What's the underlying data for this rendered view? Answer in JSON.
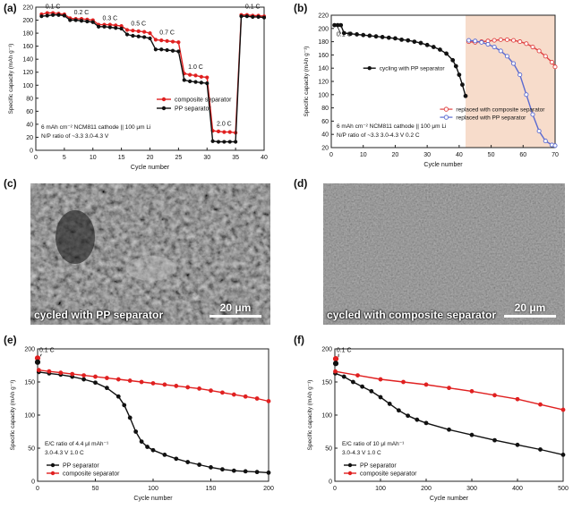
{
  "panel_labels": [
    "(a)",
    "(b)",
    "(c)",
    "(d)",
    "(e)",
    "(f)"
  ],
  "chart_data": [
    {
      "id": "a",
      "type": "line",
      "xlabel": "Cycle number",
      "ylabel": "Specific capacity (mAh g⁻¹)",
      "xlim": [
        0,
        40
      ],
      "ylim": [
        0,
        220
      ],
      "xticks": [
        0,
        5,
        10,
        15,
        20,
        25,
        30,
        35,
        40
      ],
      "yticks": [
        0,
        20,
        40,
        60,
        80,
        100,
        120,
        140,
        160,
        180,
        200,
        220
      ],
      "series": [
        {
          "name": "composite separator",
          "color": "#e02020",
          "x": [
            1,
            2,
            3,
            4,
            5,
            6,
            7,
            8,
            9,
            10,
            11,
            12,
            13,
            14,
            15,
            16,
            17,
            18,
            19,
            20,
            21,
            22,
            23,
            24,
            25,
            26,
            27,
            28,
            29,
            30,
            31,
            32,
            33,
            34,
            35,
            36,
            37,
            38,
            39,
            40
          ],
          "y": [
            209,
            211,
            211,
            210,
            209,
            203,
            202,
            202,
            201,
            200,
            193,
            193,
            193,
            192,
            191,
            185,
            184,
            183,
            182,
            180,
            170,
            169,
            168,
            167,
            166,
            118,
            116,
            115,
            113,
            112,
            30,
            29,
            28,
            28,
            27,
            208,
            208,
            207,
            207,
            206
          ]
        },
        {
          "name": "PP separator",
          "color": "#111111",
          "x": [
            1,
            2,
            3,
            4,
            5,
            6,
            7,
            8,
            9,
            10,
            11,
            12,
            13,
            14,
            15,
            16,
            17,
            18,
            19,
            20,
            21,
            22,
            23,
            24,
            25,
            26,
            27,
            28,
            29,
            30,
            31,
            32,
            33,
            34,
            35,
            36,
            37,
            38,
            39,
            40
          ],
          "y": [
            206,
            207,
            208,
            208,
            207,
            200,
            200,
            199,
            198,
            197,
            190,
            190,
            189,
            188,
            187,
            178,
            176,
            175,
            174,
            172,
            155,
            155,
            154,
            153,
            152,
            108,
            106,
            105,
            104,
            103,
            14,
            13,
            13,
            13,
            13,
            206,
            206,
            205,
            205,
            204
          ]
        }
      ],
      "annotations": [
        {
          "text": "0.1 C",
          "x": 3,
          "y": 218
        },
        {
          "text": "0.2 C",
          "x": 8,
          "y": 209
        },
        {
          "text": "0.3 C",
          "x": 13,
          "y": 200
        },
        {
          "text": "0.5 C",
          "x": 18,
          "y": 192
        },
        {
          "text": "0.7 C",
          "x": 23,
          "y": 178
        },
        {
          "text": "1.0 C",
          "x": 28,
          "y": 125
        },
        {
          "text": "2.0 C",
          "x": 33,
          "y": 38
        },
        {
          "text": "0.1 C",
          "x": 38,
          "y": 218
        }
      ],
      "notes": [
        "6 mAh cm⁻² NCM811 cathode || 100 μm Li",
        "N/P ratio of ~3.3    3.0-4.3 V"
      ],
      "legend_position": "center-right"
    },
    {
      "id": "b",
      "type": "line",
      "xlabel": "Cycle number",
      "ylabel": "Specific capacity (mAh g⁻¹)",
      "xlim": [
        0,
        70
      ],
      "ylim": [
        20,
        220
      ],
      "xticks": [
        0,
        10,
        20,
        30,
        40,
        50,
        60,
        70
      ],
      "yticks": [
        20,
        40,
        60,
        80,
        100,
        120,
        140,
        160,
        180,
        200,
        220
      ],
      "shaded_region": {
        "x": [
          42,
          70
        ],
        "color": "#f7dccb"
      },
      "series": [
        {
          "name": "cycling with PP separator",
          "color": "#111111",
          "marker": "filled",
          "x": [
            1,
            2,
            3,
            4,
            6,
            8,
            10,
            12,
            14,
            16,
            18,
            20,
            22,
            24,
            26,
            28,
            30,
            32,
            34,
            36,
            38,
            39,
            40,
            41,
            42
          ],
          "y": [
            205,
            205,
            205,
            193,
            192,
            191,
            190,
            189,
            188,
            187,
            186,
            185,
            183,
            182,
            180,
            178,
            175,
            172,
            168,
            162,
            152,
            143,
            130,
            115,
            98
          ]
        },
        {
          "name": "replaced with composite separator",
          "color": "#e04040",
          "marker": "open",
          "x": [
            43,
            45,
            47,
            49,
            51,
            53,
            55,
            57,
            59,
            61,
            63,
            65,
            67,
            69,
            70
          ],
          "y": [
            180,
            179,
            180,
            181,
            182,
            183,
            183,
            182,
            180,
            177,
            172,
            166,
            158,
            149,
            142
          ]
        },
        {
          "name": "replaced with PP separator",
          "color": "#5a6ad0",
          "marker": "open",
          "x": [
            43,
            45,
            47,
            49,
            51,
            53,
            55,
            57,
            59,
            61,
            63,
            65,
            67,
            69,
            70
          ],
          "y": [
            182,
            181,
            179,
            176,
            172,
            166,
            158,
            147,
            130,
            100,
            70,
            45,
            30,
            24,
            23
          ]
        }
      ],
      "annotations": [
        {
          "text": "0.1 C",
          "x": 4,
          "y": 188
        }
      ],
      "notes": [
        "6 mAh cm⁻² NCM811 cathode || 100 μm Li",
        "N/P ratio of ~3.3    3.0-4.3 V   0.2 C"
      ],
      "legend_position": "center-left and lower-right"
    },
    {
      "id": "e",
      "type": "line",
      "xlabel": "Cycle number",
      "ylabel": "Specific capacity (mAh g⁻¹)",
      "xlim": [
        0,
        200
      ],
      "ylim": [
        0,
        200
      ],
      "xticks": [
        0,
        50,
        100,
        150,
        200
      ],
      "yticks": [
        0,
        50,
        100,
        150,
        200
      ],
      "series": [
        {
          "name": "PP separator",
          "color": "#111111",
          "x": [
            1,
            10,
            20,
            30,
            40,
            50,
            60,
            70,
            75,
            80,
            85,
            90,
            95,
            100,
            110,
            120,
            130,
            140,
            150,
            160,
            170,
            180,
            190,
            200
          ],
          "y": [
            165,
            163,
            161,
            158,
            154,
            149,
            141,
            128,
            115,
            96,
            75,
            60,
            52,
            47,
            40,
            34,
            29,
            25,
            21,
            18,
            16,
            15,
            14,
            13
          ]
        },
        {
          "name": "composite separator",
          "color": "#e02020",
          "x": [
            1,
            10,
            20,
            30,
            40,
            50,
            60,
            70,
            80,
            90,
            100,
            110,
            120,
            130,
            140,
            150,
            160,
            170,
            180,
            190,
            200
          ],
          "y": [
            168,
            166,
            164,
            162,
            160,
            158,
            156,
            154,
            152,
            150,
            148,
            146,
            144,
            142,
            140,
            137,
            134,
            131,
            128,
            125,
            121
          ]
        }
      ],
      "start_points": [
        {
          "x": 0,
          "y": 186,
          "color": "#e02020"
        },
        {
          "x": 0,
          "y": 180,
          "color": "#111111"
        }
      ],
      "annotations": [
        {
          "text": "0.1 C",
          "x": 8,
          "y": 195
        }
      ],
      "notes": [
        "E/C ratio of 4.4 μl mAh⁻¹",
        "3.0-4.3 V   1.0 C"
      ],
      "legend_position": "bottom-left"
    },
    {
      "id": "f",
      "type": "line",
      "xlabel": "Cycle number",
      "ylabel": "Specific capacity (mAh g⁻¹)",
      "xlim": [
        0,
        500
      ],
      "ylim": [
        0,
        200
      ],
      "xticks": [
        0,
        100,
        200,
        300,
        400,
        500
      ],
      "yticks": [
        0,
        50,
        100,
        150,
        200
      ],
      "series": [
        {
          "name": "PP separator",
          "color": "#111111",
          "x": [
            1,
            20,
            40,
            60,
            80,
            100,
            120,
            140,
            160,
            180,
            200,
            250,
            300,
            350,
            400,
            450,
            500
          ],
          "y": [
            163,
            158,
            150,
            143,
            136,
            127,
            117,
            107,
            99,
            93,
            88,
            78,
            70,
            62,
            55,
            48,
            40
          ]
        },
        {
          "name": "composite separator",
          "color": "#e02020",
          "x": [
            1,
            50,
            100,
            150,
            200,
            250,
            300,
            350,
            400,
            450,
            500
          ],
          "y": [
            166,
            160,
            154,
            150,
            146,
            141,
            136,
            130,
            124,
            116,
            108
          ]
        }
      ],
      "start_points": [
        {
          "x": 2,
          "y": 185,
          "color": "#e02020"
        },
        {
          "x": 2,
          "y": 178,
          "color": "#111111"
        }
      ],
      "annotations": [
        {
          "text": "0.1 C",
          "x": 20,
          "y": 195
        }
      ],
      "notes": [
        "E/C ratio of 10 μl mAh⁻¹",
        "3.0-4.3 V   1.0 C"
      ],
      "legend_position": "bottom-left"
    }
  ],
  "images": [
    {
      "id": "c",
      "caption": "cycled with PP separator",
      "scale_bar": "20 μm"
    },
    {
      "id": "d",
      "caption": "cycled with composite separator",
      "scale_bar": "20 μm"
    }
  ]
}
